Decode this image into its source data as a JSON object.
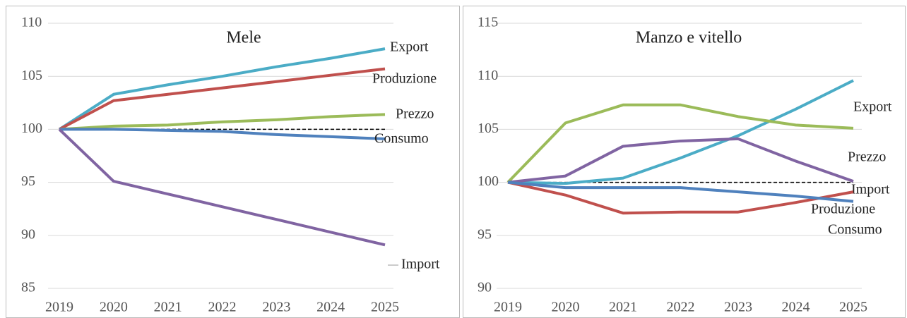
{
  "chart_data": [
    {
      "type": "line",
      "title": "Mele",
      "x": [
        2019,
        2020,
        2021,
        2022,
        2023,
        2024,
        2025
      ],
      "xlim": [
        2019,
        2025
      ],
      "xticks": [
        2019,
        2020,
        2021,
        2022,
        2023,
        2024,
        2025
      ],
      "ylim": [
        85,
        110
      ],
      "yticks": [
        85,
        90,
        95,
        100,
        105,
        110
      ],
      "grid": true,
      "reference": 100,
      "series": [
        {
          "name": "Export",
          "color": "#4bacc6",
          "values": [
            100,
            103.3,
            104.2,
            105.0,
            105.9,
            106.7,
            107.6
          ]
        },
        {
          "name": "Produzione",
          "color": "#c0504d",
          "values": [
            100,
            102.7,
            103.3,
            103.9,
            104.5,
            105.1,
            105.7
          ]
        },
        {
          "name": "Prezzo",
          "color": "#9bbb59",
          "values": [
            100,
            100.3,
            100.4,
            100.7,
            100.9,
            101.2,
            101.4
          ]
        },
        {
          "name": "Consumo",
          "color": "#4f81bd",
          "values": [
            100,
            100.0,
            99.9,
            99.8,
            99.5,
            99.3,
            99.1
          ]
        },
        {
          "name": "Import",
          "color": "#8064a2",
          "values": [
            100,
            95.1,
            93.9,
            92.7,
            91.5,
            90.3,
            89.1
          ]
        }
      ]
    },
    {
      "type": "line",
      "title": "Manzo e vitello",
      "x": [
        2019,
        2020,
        2021,
        2022,
        2023,
        2024,
        2025
      ],
      "xlim": [
        2019,
        2025
      ],
      "xticks": [
        2019,
        2020,
        2021,
        2022,
        2023,
        2024,
        2025
      ],
      "ylim": [
        90,
        115
      ],
      "yticks": [
        90,
        95,
        100,
        105,
        110,
        115
      ],
      "grid": true,
      "reference": 100,
      "series": [
        {
          "name": "Export",
          "color": "#4bacc6",
          "values": [
            100,
            99.9,
            100.4,
            102.3,
            104.4,
            106.9,
            109.6
          ]
        },
        {
          "name": "Prezzo",
          "color": "#9bbb59",
          "values": [
            100,
            105.6,
            107.3,
            107.3,
            106.2,
            105.4,
            105.1
          ]
        },
        {
          "name": "Import",
          "color": "#8064a2",
          "values": [
            100,
            100.6,
            103.4,
            103.9,
            104.1,
            102.0,
            100.1
          ]
        },
        {
          "name": "Produzione",
          "color": "#c0504d",
          "values": [
            100,
            98.8,
            97.1,
            97.2,
            97.2,
            98.1,
            99.1
          ]
        },
        {
          "name": "Consumo",
          "color": "#4f81bd",
          "values": [
            100,
            99.5,
            99.5,
            99.5,
            99.1,
            98.7,
            98.2
          ]
        }
      ]
    }
  ]
}
